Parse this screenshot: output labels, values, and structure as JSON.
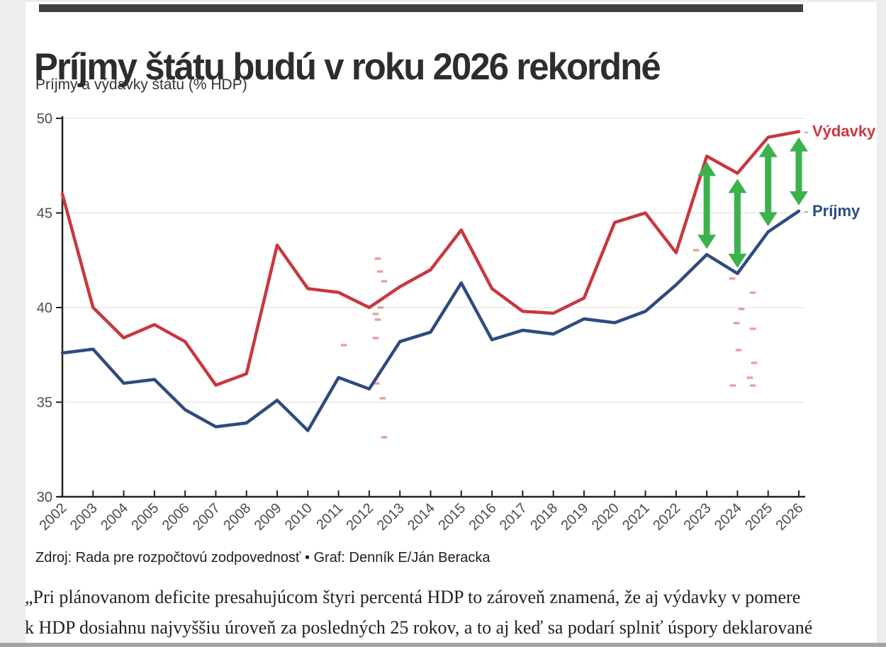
{
  "header": {
    "title": "Príjmy štátu budú v roku 2026 rekordné",
    "subtitle": "Príjmy a výdavky štátu (% HDP)"
  },
  "chart_data": {
    "type": "line",
    "x": [
      2002,
      2003,
      2004,
      2005,
      2006,
      2007,
      2008,
      2009,
      2010,
      2011,
      2012,
      2013,
      2014,
      2015,
      2016,
      2017,
      2018,
      2019,
      2020,
      2021,
      2022,
      2023,
      2024,
      2025,
      2026
    ],
    "series": [
      {
        "name": "Výdavky",
        "color": "#c9373f",
        "values": [
          46.0,
          40.0,
          38.4,
          39.1,
          38.2,
          35.9,
          36.5,
          43.3,
          41.0,
          40.8,
          40.0,
          41.1,
          42.0,
          44.1,
          41.0,
          39.8,
          39.7,
          40.5,
          44.5,
          45.0,
          42.9,
          48.0,
          47.1,
          49.0,
          49.3
        ]
      },
      {
        "name": "Príjmy",
        "color": "#2d4b80",
        "values": [
          37.6,
          37.8,
          36.0,
          36.2,
          34.6,
          33.7,
          33.9,
          35.1,
          33.5,
          36.3,
          35.7,
          38.2,
          38.7,
          41.3,
          38.3,
          38.8,
          38.6,
          39.4,
          39.2,
          39.8,
          41.2,
          42.8,
          41.8,
          44.0,
          45.1
        ]
      }
    ],
    "ylim": [
      30,
      50
    ],
    "yticks": [
      30,
      35,
      40,
      45,
      50
    ],
    "grid": true,
    "legend_position": "right-of-line-ends",
    "legend": [
      {
        "label": "Výdavky",
        "color": "#c9373f"
      },
      {
        "label": "Príjmy",
        "color": "#2d4b80"
      }
    ],
    "legend_dash": "-",
    "gap_arrow_years": [
      2023,
      2024,
      2025,
      2026
    ],
    "arrow_color": "#3bb24c",
    "axis_color": "#222222",
    "grid_color": "#e8e8e8",
    "tick_label_color": "#4c4c4c",
    "artifact_color": "#e59090",
    "artifact_marks": [
      [
        533,
        365
      ],
      [
        536,
        383
      ],
      [
        542,
        397
      ],
      [
        537,
        434
      ],
      [
        530,
        443
      ],
      [
        533,
        451
      ],
      [
        530,
        477
      ],
      [
        485,
        487
      ],
      [
        531,
        541
      ],
      [
        540,
        562
      ],
      [
        542,
        617
      ],
      [
        982,
        353
      ],
      [
        1033,
        393
      ],
      [
        1062,
        413
      ],
      [
        1046,
        436
      ],
      [
        1039,
        456
      ],
      [
        1062,
        464
      ],
      [
        1042,
        494
      ],
      [
        1064,
        512
      ],
      [
        1058,
        533
      ],
      [
        1034,
        544
      ],
      [
        1062,
        544
      ]
    ]
  },
  "source": {
    "text": "Zdroj: Rada pre rozpočtovú zodpovednosť • Graf: Denník E/Ján Beracka"
  },
  "body_text": {
    "lines": [
      "„Pri plánovanom deficite presahujúcom štyri percentá HDP to zároveň znamená, že aj výdavky v pomere",
      "k HDP dosiahnu najvyššiu úroveň za posledných 25 rokov, a to aj keď sa podarí splniť úspory deklarované"
    ]
  }
}
